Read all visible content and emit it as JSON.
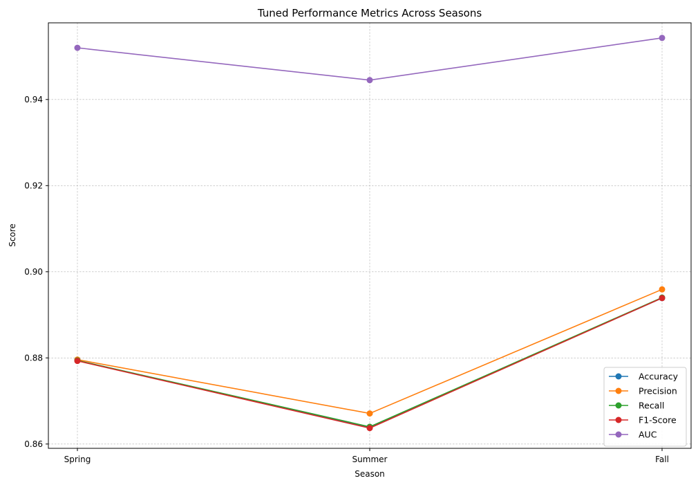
{
  "chart_data": {
    "type": "line",
    "title": "Tuned Performance Metrics Across Seasons",
    "xlabel": "Season",
    "ylabel": "Score",
    "categories": [
      "Spring",
      "Summer",
      "Fall"
    ],
    "ylim": [
      0.859,
      0.9578
    ],
    "yticks": [
      0.86,
      0.88,
      0.9,
      0.92,
      0.94
    ],
    "ytick_labels": [
      "0.86",
      "0.88",
      "0.90",
      "0.92",
      "0.94"
    ],
    "grid": true,
    "legend_position": "lower-right",
    "series": [
      {
        "name": "Accuracy",
        "color": "#1f77b4",
        "values": [
          0.8794,
          0.8639,
          0.8939
        ]
      },
      {
        "name": "Precision",
        "color": "#ff7f0e",
        "values": [
          0.8796,
          0.8671,
          0.8959
        ]
      },
      {
        "name": "Recall",
        "color": "#2ca02c",
        "values": [
          0.8794,
          0.864,
          0.894
        ]
      },
      {
        "name": "F1-Score",
        "color": "#d62728",
        "values": [
          0.8793,
          0.8637,
          0.8939
        ]
      },
      {
        "name": "AUC",
        "color": "#9467bd",
        "values": [
          0.952,
          0.9445,
          0.9543
        ]
      }
    ]
  }
}
